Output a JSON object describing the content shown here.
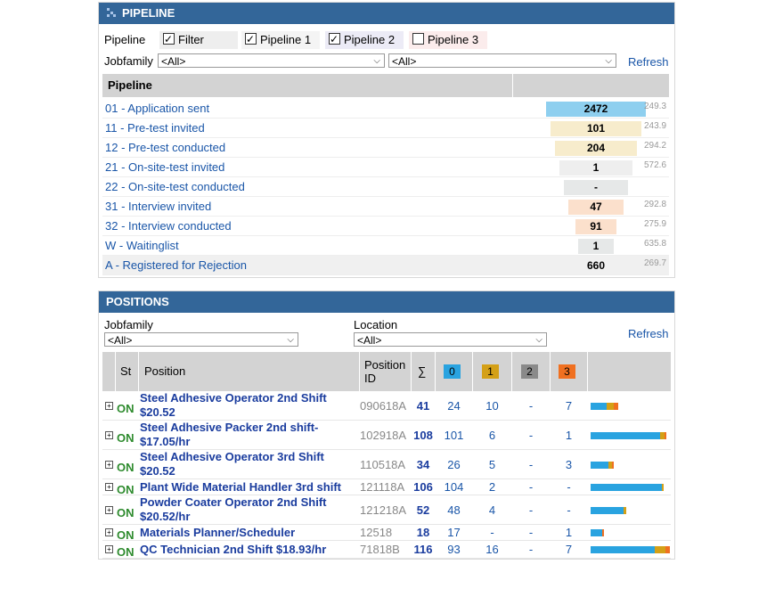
{
  "pipeline_panel": {
    "title": "PIPELINE",
    "pipeline_label": "Pipeline",
    "filters": [
      {
        "label": "Filter",
        "checked": true
      },
      {
        "label": "Pipeline 1",
        "checked": true
      },
      {
        "label": "Pipeline 2",
        "checked": true
      },
      {
        "label": "Pipeline 3",
        "checked": false
      }
    ],
    "jobfamily_label": "Jobfamily",
    "select1": "<All>",
    "select2": "<All>",
    "refresh": "Refresh",
    "table_header": "Pipeline",
    "rows": [
      {
        "label": "01 - Application sent",
        "count": "2472",
        "metric": "249.3",
        "color": "#8ecfef"
      },
      {
        "label": "11 - Pre-test invited",
        "count": "101",
        "metric": "243.9",
        "color": "#f7eccc"
      },
      {
        "label": "12 - Pre-test conducted",
        "count": "204",
        "metric": "294.2",
        "color": "#f7eccc"
      },
      {
        "label": "21 - On-site-test invited",
        "count": "1",
        "metric": "572.6",
        "color": "#eeeeee"
      },
      {
        "label": "22 - On-site-test conducted",
        "count": "-",
        "metric": "",
        "color": "#e6e8e8"
      },
      {
        "label": "31 - Interview invited",
        "count": "47",
        "metric": "292.8",
        "color": "#fbe0cc"
      },
      {
        "label": "32 - Interview conducted",
        "count": "91",
        "metric": "275.9",
        "color": "#fbe0cc"
      },
      {
        "label": "W - Waitinglist",
        "count": "1",
        "metric": "635.8",
        "color": "#e6e8e8"
      },
      {
        "label": "A - Registered for Rejection",
        "count": "660",
        "metric": "269.7",
        "color": ""
      }
    ]
  },
  "positions_panel": {
    "title": "POSITIONS",
    "jobfamily_label": "Jobfamily",
    "location_label": "Location",
    "select_jobfamily": "<All>",
    "select_location": "<All>",
    "refresh": "Refresh",
    "headers": {
      "st": "St",
      "position": "Position",
      "position_id_1": "Position",
      "position_id_2": "ID",
      "sum": "∑",
      "b0": "0",
      "b1": "1",
      "b2": "2",
      "b3": "3"
    },
    "badge_colors": {
      "b0": "#29a3e0",
      "b1": "#d4a017",
      "b2": "#8a8a8a",
      "b3": "#f07020"
    },
    "rows": [
      {
        "status": "ON",
        "title1": "Steel Adhesive Operator 2nd Shift",
        "title2": "$20.52",
        "id": "090618A",
        "sum": "41",
        "c0": "24",
        "c1": "10",
        "c2": "-",
        "c3": "7",
        "bar": [
          0.24,
          0.1,
          0.0,
          0.07
        ]
      },
      {
        "status": "ON",
        "title1": "Steel Adhesive Packer 2nd shift-",
        "title2": "$17.05/hr",
        "id": "102918A",
        "sum": "108",
        "c0": "101",
        "c1": "6",
        "c2": "-",
        "c3": "1",
        "bar": [
          1.01,
          0.06,
          0.0,
          0.01
        ]
      },
      {
        "status": "ON",
        "title1": "Steel Adhesive Operator 3rd Shift",
        "title2": "$20.52",
        "id": "110518A",
        "sum": "34",
        "c0": "26",
        "c1": "5",
        "c2": "-",
        "c3": "3",
        "bar": [
          0.26,
          0.05,
          0.0,
          0.03
        ]
      },
      {
        "status": "ON",
        "title1": "Plant Wide Material Handler 3rd shift",
        "title2": "",
        "id": "121118A",
        "sum": "106",
        "c0": "104",
        "c1": "2",
        "c2": "-",
        "c3": "-",
        "bar": [
          1.04,
          0.02,
          0.0,
          0.0
        ]
      },
      {
        "status": "ON",
        "title1": "Powder Coater Operator 2nd Shift",
        "title2": "$20.52/hr",
        "id": "121218A",
        "sum": "52",
        "c0": "48",
        "c1": "4",
        "c2": "-",
        "c3": "-",
        "bar": [
          0.48,
          0.04,
          0.0,
          0.0
        ]
      },
      {
        "status": "ON",
        "title1": "Materials Planner/Scheduler",
        "title2": "",
        "id": "12518",
        "sum": "18",
        "c0": "17",
        "c1": "-",
        "c2": "-",
        "c3": "1",
        "bar": [
          0.17,
          0.0,
          0.0,
          0.01
        ]
      },
      {
        "status": "ON",
        "title1": "QC Technician 2nd Shift $18.93/hr",
        "title2": "",
        "id": "71818B",
        "sum": "116",
        "c0": "93",
        "c1": "16",
        "c2": "-",
        "c3": "7",
        "bar": [
          0.93,
          0.16,
          0.0,
          0.07
        ]
      }
    ]
  }
}
